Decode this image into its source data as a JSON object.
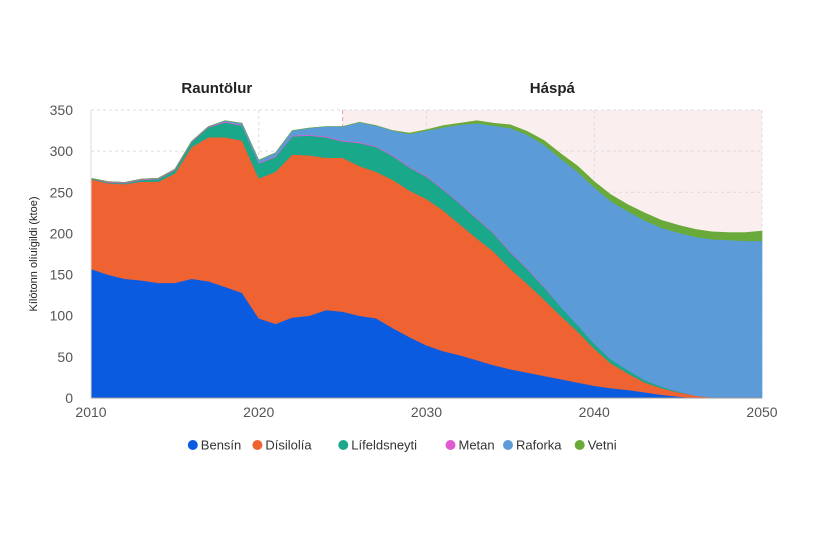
{
  "chart_data": {
    "type": "area",
    "stacked": true,
    "xlabel": "",
    "ylabel": "Kílótonn olíuígildi (ktoe)",
    "xlim": [
      2010,
      2050
    ],
    "ylim": [
      0,
      350
    ],
    "x_ticks": [
      "2010",
      "2020",
      "2030",
      "2040",
      "2050"
    ],
    "y_ticks": [
      "0",
      "50",
      "100",
      "150",
      "200",
      "250",
      "300",
      "350"
    ],
    "grid": true,
    "legend_position": "bottom",
    "periods": [
      {
        "label": "Rauntölur",
        "from": 2010,
        "to": 2025
      },
      {
        "label": "Háspá",
        "from": 2025,
        "to": 2050,
        "shaded": true,
        "color": "#fbeeee"
      }
    ],
    "x": [
      2010,
      2011,
      2012,
      2013,
      2014,
      2015,
      2016,
      2017,
      2018,
      2019,
      2020,
      2021,
      2022,
      2023,
      2024,
      2025,
      2026,
      2027,
      2028,
      2029,
      2030,
      2031,
      2032,
      2033,
      2034,
      2035,
      2036,
      2037,
      2038,
      2039,
      2040,
      2041,
      2042,
      2043,
      2044,
      2045,
      2046,
      2047,
      2048,
      2049,
      2050
    ],
    "series": [
      {
        "name": "Bensín",
        "color": "#0a5be0",
        "values": [
          157,
          150,
          145,
          143,
          140,
          140,
          145,
          142,
          135,
          128,
          97,
          90,
          98,
          100,
          107,
          105,
          100,
          97,
          85,
          74,
          64,
          57,
          52,
          46,
          40,
          35,
          31,
          27,
          23,
          19,
          15,
          12,
          10,
          7,
          4,
          2,
          0,
          0,
          0,
          0,
          0
        ]
      },
      {
        "name": "Dísilolía",
        "color": "#ef6232",
        "values": [
          109,
          111,
          115,
          120,
          123,
          133,
          160,
          175,
          182,
          185,
          170,
          185,
          198,
          195,
          185,
          187,
          182,
          178,
          180,
          178,
          178,
          171,
          159,
          148,
          138,
          122,
          108,
          93,
          77,
          62,
          45,
          30,
          20,
          12,
          8,
          5,
          3,
          1,
          0,
          0,
          0
        ]
      },
      {
        "name": "Lífeldsneyti",
        "color": "#19a88a",
        "values": [
          1,
          1,
          1,
          2,
          3,
          4,
          6,
          12,
          18,
          18,
          18,
          18,
          22,
          24,
          25,
          20,
          28,
          30,
          29,
          28,
          27,
          25,
          25,
          24,
          22,
          20,
          18,
          15,
          11,
          8,
          6,
          5,
          4,
          3,
          2,
          1,
          0,
          0,
          0,
          0,
          0
        ]
      },
      {
        "name": "Metan",
        "color": "#e05ad0",
        "values": [
          0,
          1,
          1,
          1,
          1,
          1,
          1,
          1,
          1,
          1,
          1,
          1,
          1,
          1,
          1,
          1,
          1,
          1,
          1,
          1,
          1,
          1,
          1,
          1,
          1,
          1,
          1,
          1,
          0,
          0,
          0,
          0,
          0,
          0,
          0,
          0,
          0,
          0,
          0,
          0,
          0
        ]
      },
      {
        "name": "Raforka",
        "color": "#5b9bd8",
        "values": [
          0,
          0,
          0,
          0,
          0,
          0,
          0,
          0,
          1,
          2,
          3,
          4,
          6,
          8,
          12,
          17,
          24,
          25,
          30,
          40,
          55,
          75,
          95,
          115,
          130,
          150,
          162,
          172,
          180,
          186,
          190,
          192,
          193,
          194,
          193,
          193,
          193,
          192,
          192,
          191,
          191
        ]
      },
      {
        "name": "Vetni",
        "color": "#6aaa3a",
        "values": [
          0,
          0,
          0,
          0,
          0,
          0,
          0,
          0,
          0,
          0,
          0,
          0,
          0,
          0,
          0,
          0,
          0,
          0,
          0,
          1,
          1,
          2,
          2,
          3,
          3,
          4,
          4,
          5,
          6,
          7,
          7,
          8,
          8,
          9,
          9,
          9,
          9,
          9,
          9,
          10,
          12
        ]
      }
    ]
  }
}
